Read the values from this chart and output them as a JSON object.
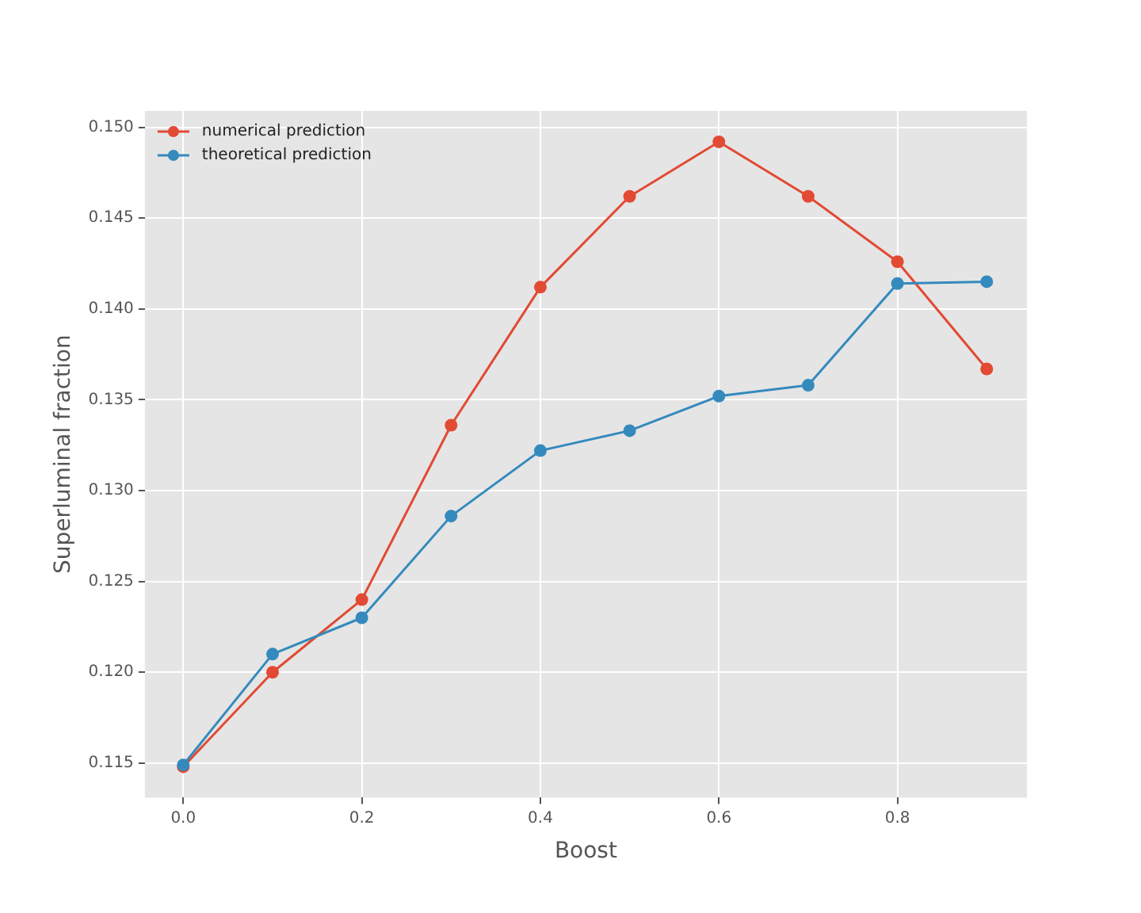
{
  "chart_data": {
    "type": "line",
    "xlabel": "Boost",
    "ylabel": "Superluminal fraction",
    "x": [
      0,
      0.1,
      0.2,
      0.3,
      0.4,
      0.5,
      0.6,
      0.7,
      0.8,
      0.9
    ],
    "series": [
      {
        "name": "numerical prediction",
        "color": "#e24a33",
        "values": [
          0.1148,
          0.12,
          0.124,
          0.1336,
          0.1412,
          0.1462,
          0.1492,
          0.1462,
          0.1426,
          0.1367
        ]
      },
      {
        "name": "theoretical prediction",
        "color": "#348abd",
        "values": [
          0.1149,
          0.121,
          0.123,
          0.1286,
          0.1322,
          0.1333,
          0.1352,
          0.1358,
          0.1414,
          0.1415
        ]
      }
    ],
    "xlim": [
      -0.043,
      0.945
    ],
    "xticks": [
      {
        "value": 0,
        "label": "0.0"
      },
      0.2,
      0.4,
      0.6,
      0.8
    ],
    "ylim": [
      0.1131,
      0.1509
    ],
    "yticks": [
      {
        "value": 0.115,
        "label": "0.115"
      },
      {
        "value": 0.12,
        "label": "0.120"
      },
      0.125,
      {
        "value": 0.13,
        "label": "0.130"
      },
      0.135,
      {
        "value": 0.14,
        "label": "0.140"
      },
      0.145,
      {
        "value": 0.15,
        "label": "0.150"
      }
    ],
    "grid": true,
    "legend": "top left",
    "marker": "circle",
    "line_style": "solid"
  }
}
